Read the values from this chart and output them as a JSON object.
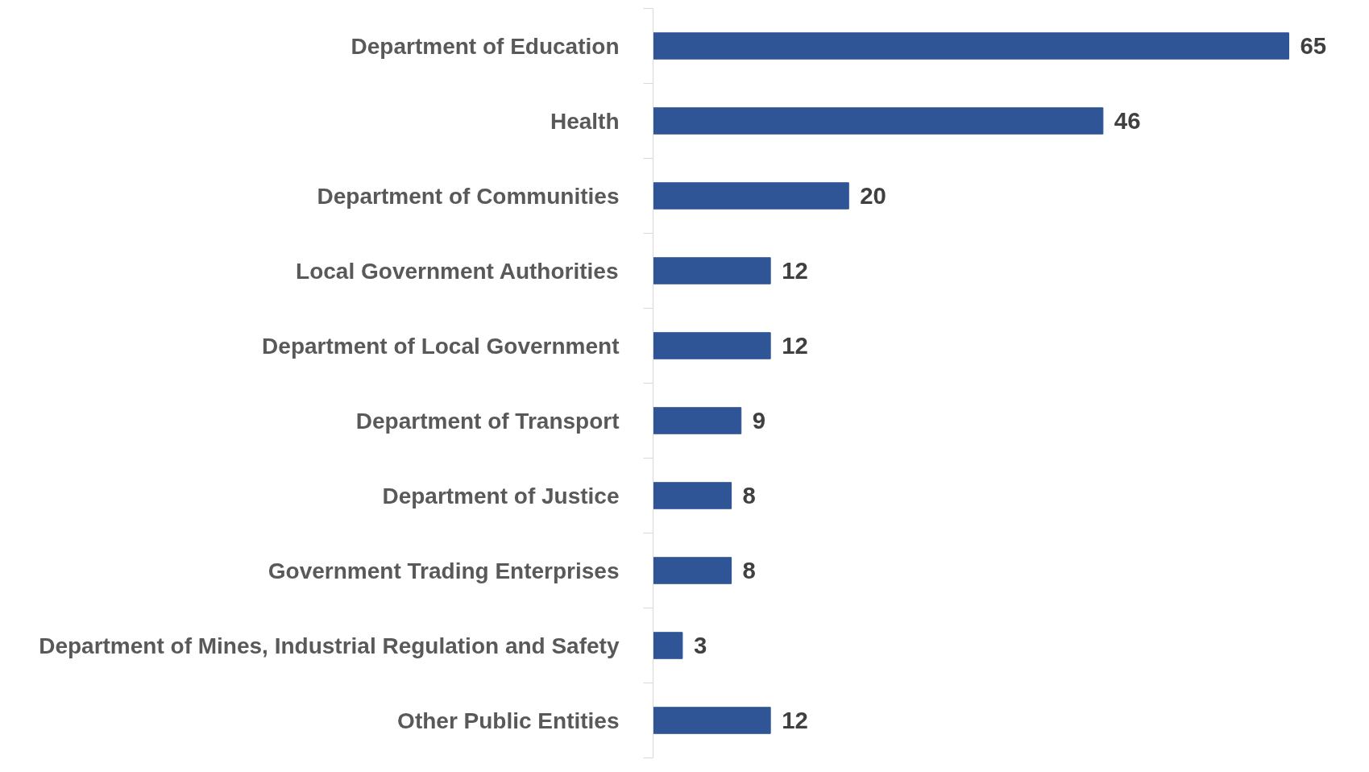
{
  "chart_data": {
    "type": "bar",
    "orientation": "horizontal",
    "categories": [
      "Department of Education",
      "Health",
      "Department of Communities",
      "Local Government Authorities",
      "Department of Local Government",
      "Department of Transport",
      "Department of Justice",
      "Government Trading Enterprises",
      "Department of Mines, Industrial Regulation and Safety",
      "Other Public Entities"
    ],
    "values": [
      65,
      46,
      20,
      12,
      12,
      9,
      8,
      8,
      3,
      12
    ],
    "color": "#2f5597",
    "data_labels": true,
    "grid": false
  }
}
